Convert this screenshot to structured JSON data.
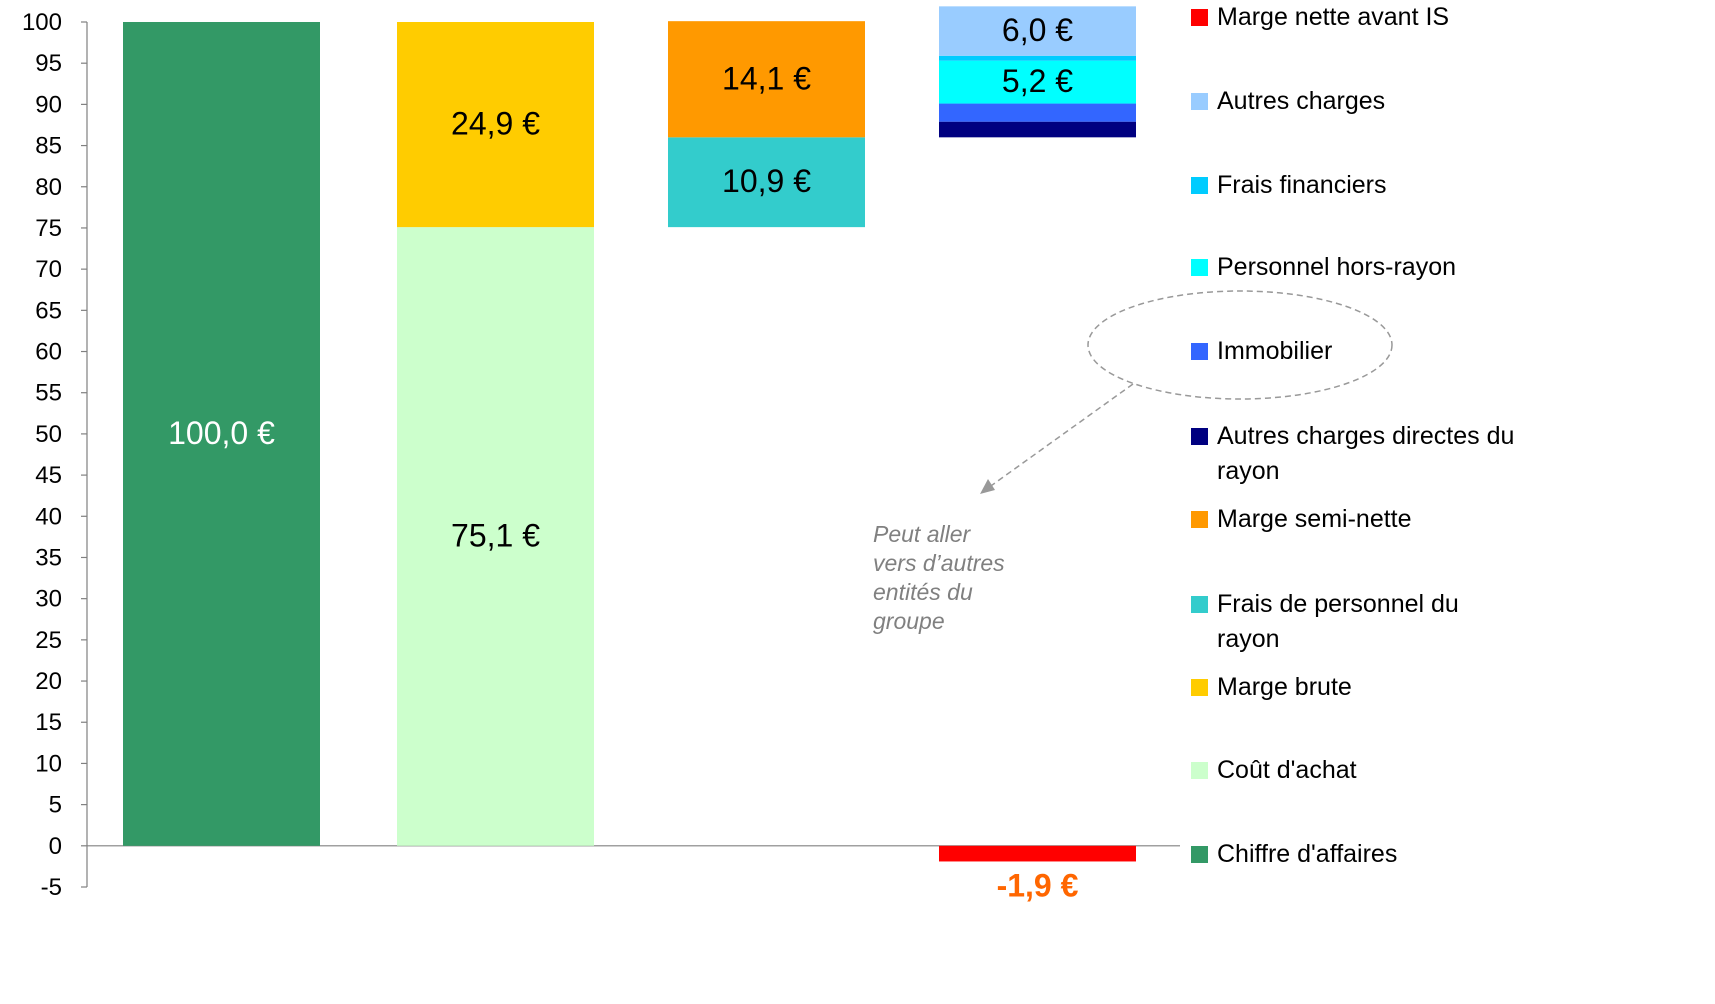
{
  "chart_data": {
    "type": "bar",
    "stacked": true,
    "ylim": [
      -5,
      100
    ],
    "yticks": [
      -5,
      0,
      5,
      10,
      15,
      20,
      25,
      30,
      35,
      40,
      45,
      50,
      55,
      60,
      65,
      70,
      75,
      80,
      85,
      90,
      95,
      100
    ],
    "categories": [
      "",
      "",
      "",
      ""
    ],
    "series": [
      {
        "name": "Chiffre d'affaires",
        "color": "#339966",
        "bars": [
          {
            "column": 0,
            "base": 0,
            "value": 100.0,
            "label": "100,0 €",
            "label_color": "#ffffff"
          }
        ]
      },
      {
        "name": "Coût d'achat",
        "color": "#CCFFCC",
        "bars": [
          {
            "column": 1,
            "base": 0,
            "value": 75.1,
            "label": "75,1 €",
            "label_color": "#000000"
          }
        ]
      },
      {
        "name": "Marge brute",
        "color": "#FFCC00",
        "bars": [
          {
            "column": 1,
            "base": 75.1,
            "value": 24.9,
            "label": "24,9 €",
            "label_color": "#000000"
          }
        ]
      },
      {
        "name": "Frais de personnel du rayon",
        "color": "#33CCCC",
        "bars": [
          {
            "column": 2,
            "base": 75.1,
            "value": 10.9,
            "label": "10,9 €",
            "label_color": "#000000"
          }
        ]
      },
      {
        "name": "Marge semi-nette",
        "color": "#FF9900",
        "bars": [
          {
            "column": 2,
            "base": 86.0,
            "value": 14.1,
            "label": "14,1 €",
            "label_color": "#000000"
          }
        ]
      },
      {
        "name": "Autres charges directes du rayon",
        "color": "#000080",
        "bars": [
          {
            "column": 3,
            "base": 86.0,
            "value": 1.9,
            "label": "",
            "label_color": "#000000"
          }
        ]
      },
      {
        "name": "Immobilier",
        "color": "#3366FF",
        "bars": [
          {
            "column": 3,
            "base": 87.9,
            "value": 2.2,
            "label": "",
            "label_color": "#000000"
          }
        ]
      },
      {
        "name": "Personnel hors-rayon",
        "color": "#00FFFF",
        "bars": [
          {
            "column": 3,
            "base": 90.1,
            "value": 5.2,
            "label": "5,2 €",
            "label_color": "#000000"
          }
        ]
      },
      {
        "name": "Frais financiers",
        "color": "#00CCFF",
        "bars": [
          {
            "column": 3,
            "base": 95.3,
            "value": 0.6,
            "label": "",
            "label_color": "#000000"
          }
        ]
      },
      {
        "name": "Autres charges",
        "color": "#99CCFF",
        "bars": [
          {
            "column": 3,
            "base": 95.9,
            "value": 6.0,
            "label": "6,0 €",
            "label_color": "#000000"
          }
        ]
      },
      {
        "name": "Marge nette avant IS",
        "color": "#FF0000",
        "bars": [
          {
            "column": 3,
            "base": 0,
            "value": -1.9,
            "label": "-1,9 €",
            "label_color": "#FF6600"
          }
        ]
      }
    ],
    "legend": {
      "placement": "right",
      "order": [
        "Marge nette avant IS",
        "Autres charges",
        "Frais financiers",
        "Personnel hors-rayon",
        "Immobilier",
        "Autres charges directes du rayon",
        "Marge semi-nette",
        "Frais de personnel du rayon",
        "Marge brute",
        "Coût d'achat",
        "Chiffre d'affaires"
      ]
    },
    "annotation": {
      "lines": [
        "Peut aller",
        "vers d’autres",
        "entités du",
        "groupe"
      ],
      "color": "#808080"
    },
    "grid": false
  }
}
